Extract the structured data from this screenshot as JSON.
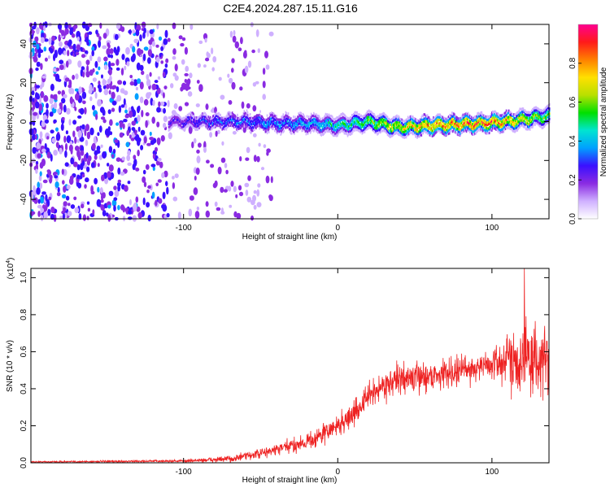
{
  "title": "C2E4.2024.287.15.11.G16",
  "chart_data": [
    {
      "type": "heatmap",
      "xlabel": "Height of straight line (km)",
      "ylabel": "Frequency (Hz)",
      "xlim": [
        -199,
        137
      ],
      "ylim": [
        -50,
        50
      ],
      "xticks": [
        -100,
        0,
        100
      ],
      "xtick_labels": [
        "-100",
        "0",
        "100"
      ],
      "yticks": [
        -40,
        -20,
        0,
        20,
        40
      ],
      "ytick_labels": [
        "-40",
        "-20",
        "0",
        "20",
        "40"
      ],
      "colorbar": {
        "label": "Normalized spectral amplitude",
        "range": [
          0,
          1
        ],
        "ticks": [
          0,
          0.2,
          0.4,
          0.6,
          0.8
        ],
        "tick_labels": [
          "0.0",
          "0.2",
          "0.4",
          "0.6",
          "0.8"
        ],
        "colors": [
          "#ffffff",
          "#cfb0ff",
          "#8a2be2",
          "#3a10ff",
          "#00a0ff",
          "#00e5d0",
          "#00e000",
          "#b8e000",
          "#ffe000",
          "#ff8000",
          "#ff1a1a",
          "#ff0090"
        ]
      },
      "noise_region_x": [
        -199,
        -62
      ],
      "signal_track": {
        "x_start": -110,
        "x_end": 137,
        "center_freq": [
          {
            "x": -110,
            "f": 0
          },
          {
            "x": -60,
            "f": 0
          },
          {
            "x": -40,
            "f": -1
          },
          {
            "x": -20,
            "f": -1
          },
          {
            "x": 0,
            "f": -2
          },
          {
            "x": 20,
            "f": 0
          },
          {
            "x": 40,
            "f": -3
          },
          {
            "x": 60,
            "f": -2
          },
          {
            "x": 90,
            "f": -1
          },
          {
            "x": 110,
            "f": 0
          },
          {
            "x": 137,
            "f": 3
          }
        ],
        "peak_amplitude": [
          {
            "x": -110,
            "a": 0.25
          },
          {
            "x": -60,
            "a": 0.35
          },
          {
            "x": -20,
            "a": 0.4
          },
          {
            "x": 10,
            "a": 0.55
          },
          {
            "x": 30,
            "a": 0.7
          },
          {
            "x": 60,
            "a": 0.85
          },
          {
            "x": 100,
            "a": 0.9
          },
          {
            "x": 137,
            "a": 0.6
          }
        ]
      }
    },
    {
      "type": "line",
      "xlabel": "Height of straight line (km)",
      "ylabel": "SNR (10 * v/v)",
      "yscale_label": "(x10^4)",
      "yscale_base": "(x10",
      "yscale_exp": "4",
      "yscale_close": ")",
      "xlim": [
        -199,
        137
      ],
      "ylim": [
        0,
        1.05
      ],
      "xticks": [
        -100,
        0,
        100
      ],
      "xtick_labels": [
        "-100",
        "0",
        "100"
      ],
      "yticks": [
        0,
        0.2,
        0.4,
        0.6,
        0.8,
        1.0
      ],
      "ytick_labels": [
        "0.0",
        "0.2",
        "0.4",
        "0.6",
        "0.8",
        "1.0"
      ],
      "series": [
        {
          "name": "SNR",
          "color": "#ee2222",
          "trend": [
            {
              "x": -199,
              "y": 0.005
            },
            {
              "x": -150,
              "y": 0.007
            },
            {
              "x": -100,
              "y": 0.01
            },
            {
              "x": -70,
              "y": 0.02
            },
            {
              "x": -50,
              "y": 0.05
            },
            {
              "x": -30,
              "y": 0.09
            },
            {
              "x": -15,
              "y": 0.13
            },
            {
              "x": 0,
              "y": 0.2
            },
            {
              "x": 10,
              "y": 0.26
            },
            {
              "x": 20,
              "y": 0.36
            },
            {
              "x": 30,
              "y": 0.42
            },
            {
              "x": 40,
              "y": 0.45
            },
            {
              "x": 60,
              "y": 0.47
            },
            {
              "x": 80,
              "y": 0.5
            },
            {
              "x": 100,
              "y": 0.53
            },
            {
              "x": 115,
              "y": 0.57
            },
            {
              "x": 125,
              "y": 0.56
            },
            {
              "x": 137,
              "y": 0.55
            }
          ],
          "noise_amplitude": [
            {
              "x": -199,
              "a": 0.004
            },
            {
              "x": -100,
              "a": 0.008
            },
            {
              "x": -50,
              "a": 0.03
            },
            {
              "x": 0,
              "a": 0.07
            },
            {
              "x": 40,
              "a": 0.09
            },
            {
              "x": 100,
              "a": 0.09
            },
            {
              "x": 115,
              "a": 0.2
            },
            {
              "x": 125,
              "a": 0.25
            },
            {
              "x": 137,
              "a": 0.2
            }
          ],
          "max_y": 1.05,
          "max_at_x": 121
        }
      ]
    }
  ]
}
